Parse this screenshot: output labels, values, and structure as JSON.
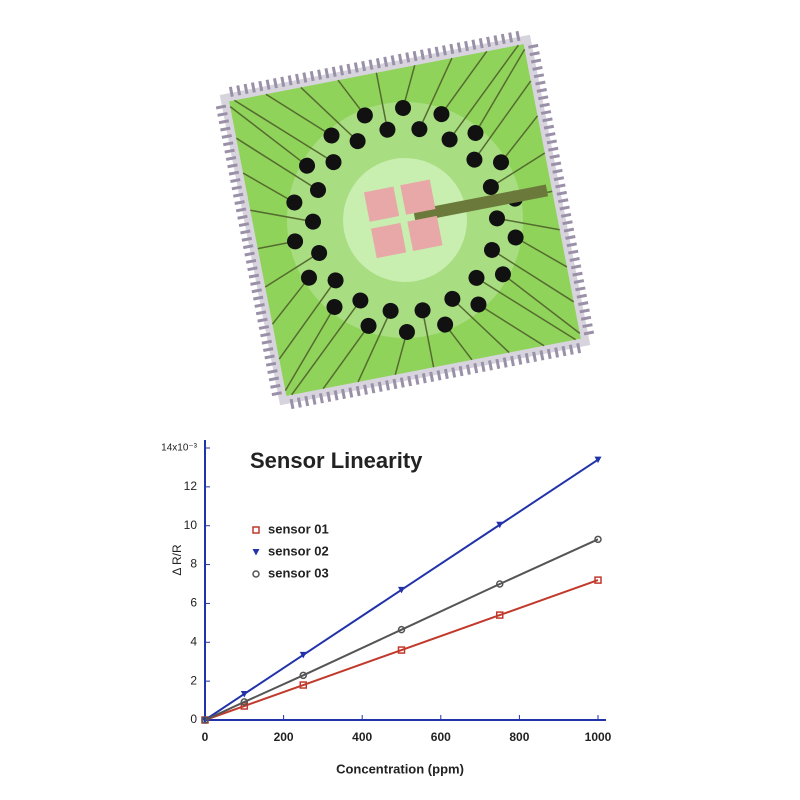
{
  "chart_data": {
    "type": "line",
    "title": "Sensor Linearity",
    "x_label": "Concentration (ppm)",
    "y_label": "Δ R/R",
    "x": [
      0,
      100,
      250,
      500,
      750,
      1000
    ],
    "series": [
      {
        "name": "sensor 01",
        "color": "#c0392b",
        "marker": "square",
        "values": [
          0,
          0.72,
          1.8,
          3.6,
          5.4,
          7.2
        ]
      },
      {
        "name": "sensor 02",
        "color": "#2233aa",
        "marker": "triangle",
        "values": [
          0,
          1.34,
          3.35,
          6.7,
          10.05,
          13.4
        ]
      },
      {
        "name": "sensor 03",
        "color": "#555555",
        "marker": "circle",
        "values": [
          0,
          0.93,
          2.3,
          4.65,
          7.0,
          9.3
        ]
      }
    ],
    "xlim": [
      0,
      1000
    ],
    "xticks": [
      0,
      200,
      400,
      600,
      800,
      1000
    ],
    "ylim": [
      0,
      14
    ],
    "yticks": [
      0,
      2,
      4,
      6,
      8,
      10,
      12,
      {
        "value": 14,
        "label": "14x10⁻³"
      }
    ]
  }
}
